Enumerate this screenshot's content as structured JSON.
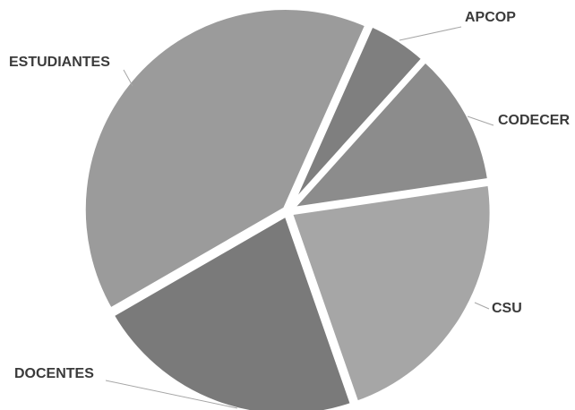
{
  "chart_data": {
    "type": "pie",
    "title": "",
    "slices": [
      {
        "label": "APCOP",
        "value": 5,
        "color": "#7f7f7f"
      },
      {
        "label": "CODECER",
        "value": 11,
        "color": "#8c8c8c"
      },
      {
        "label": "CSU",
        "value": 22,
        "color": "#a6a6a6"
      },
      {
        "label": "DOCENTES",
        "value": 22,
        "color": "#7a7a7a"
      },
      {
        "label": "ESTUDIANTES",
        "value": 40,
        "color": "#9b9b9b"
      }
    ]
  }
}
